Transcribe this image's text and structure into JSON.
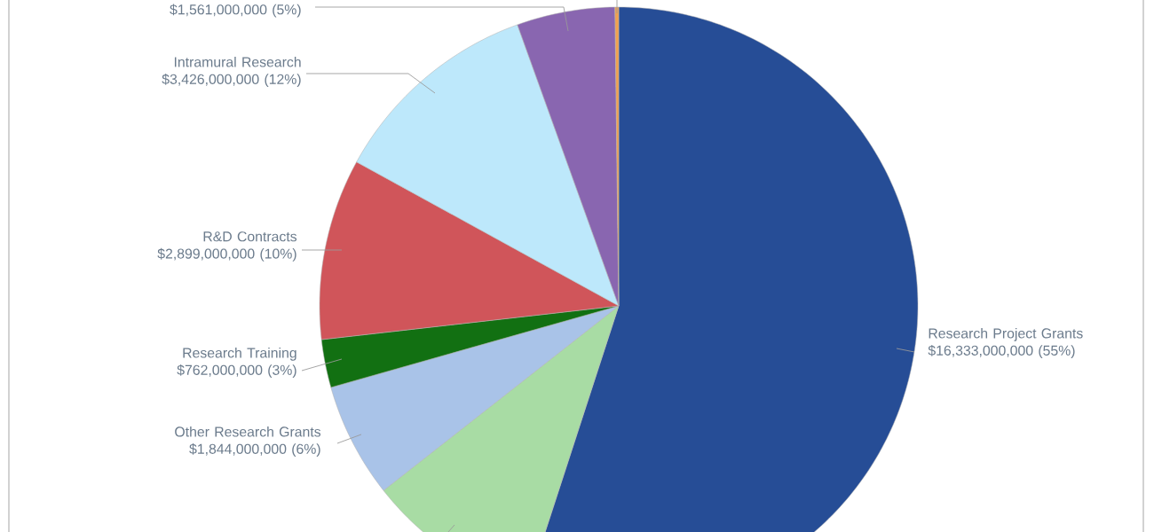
{
  "chart_data": {
    "type": "pie",
    "categories": [
      "Research Project Grants",
      null,
      "Other Research Grants",
      "Research Training",
      "R&D Contracts",
      "Intramural Research",
      null,
      null
    ],
    "values": [
      55.0,
      9.4,
      6.2,
      2.6,
      9.8,
      11.5,
      5.3,
      0.2
    ],
    "value_labels": [
      "$16,333,000,000 (55%)",
      null,
      "$1,844,000,000 (6%)",
      "$762,000,000 (3%)",
      "$2,899,000,000 (10%)",
      "$3,426,000,000 (12%)",
      "$1,561,000,000 (5%)",
      null
    ],
    "colors": [
      "#264d96",
      "#a8dca4",
      "#a9c3e8",
      "#127012",
      "#d0555a",
      "#bde8fb",
      "#8966b0",
      "#f0a050"
    ]
  }
}
